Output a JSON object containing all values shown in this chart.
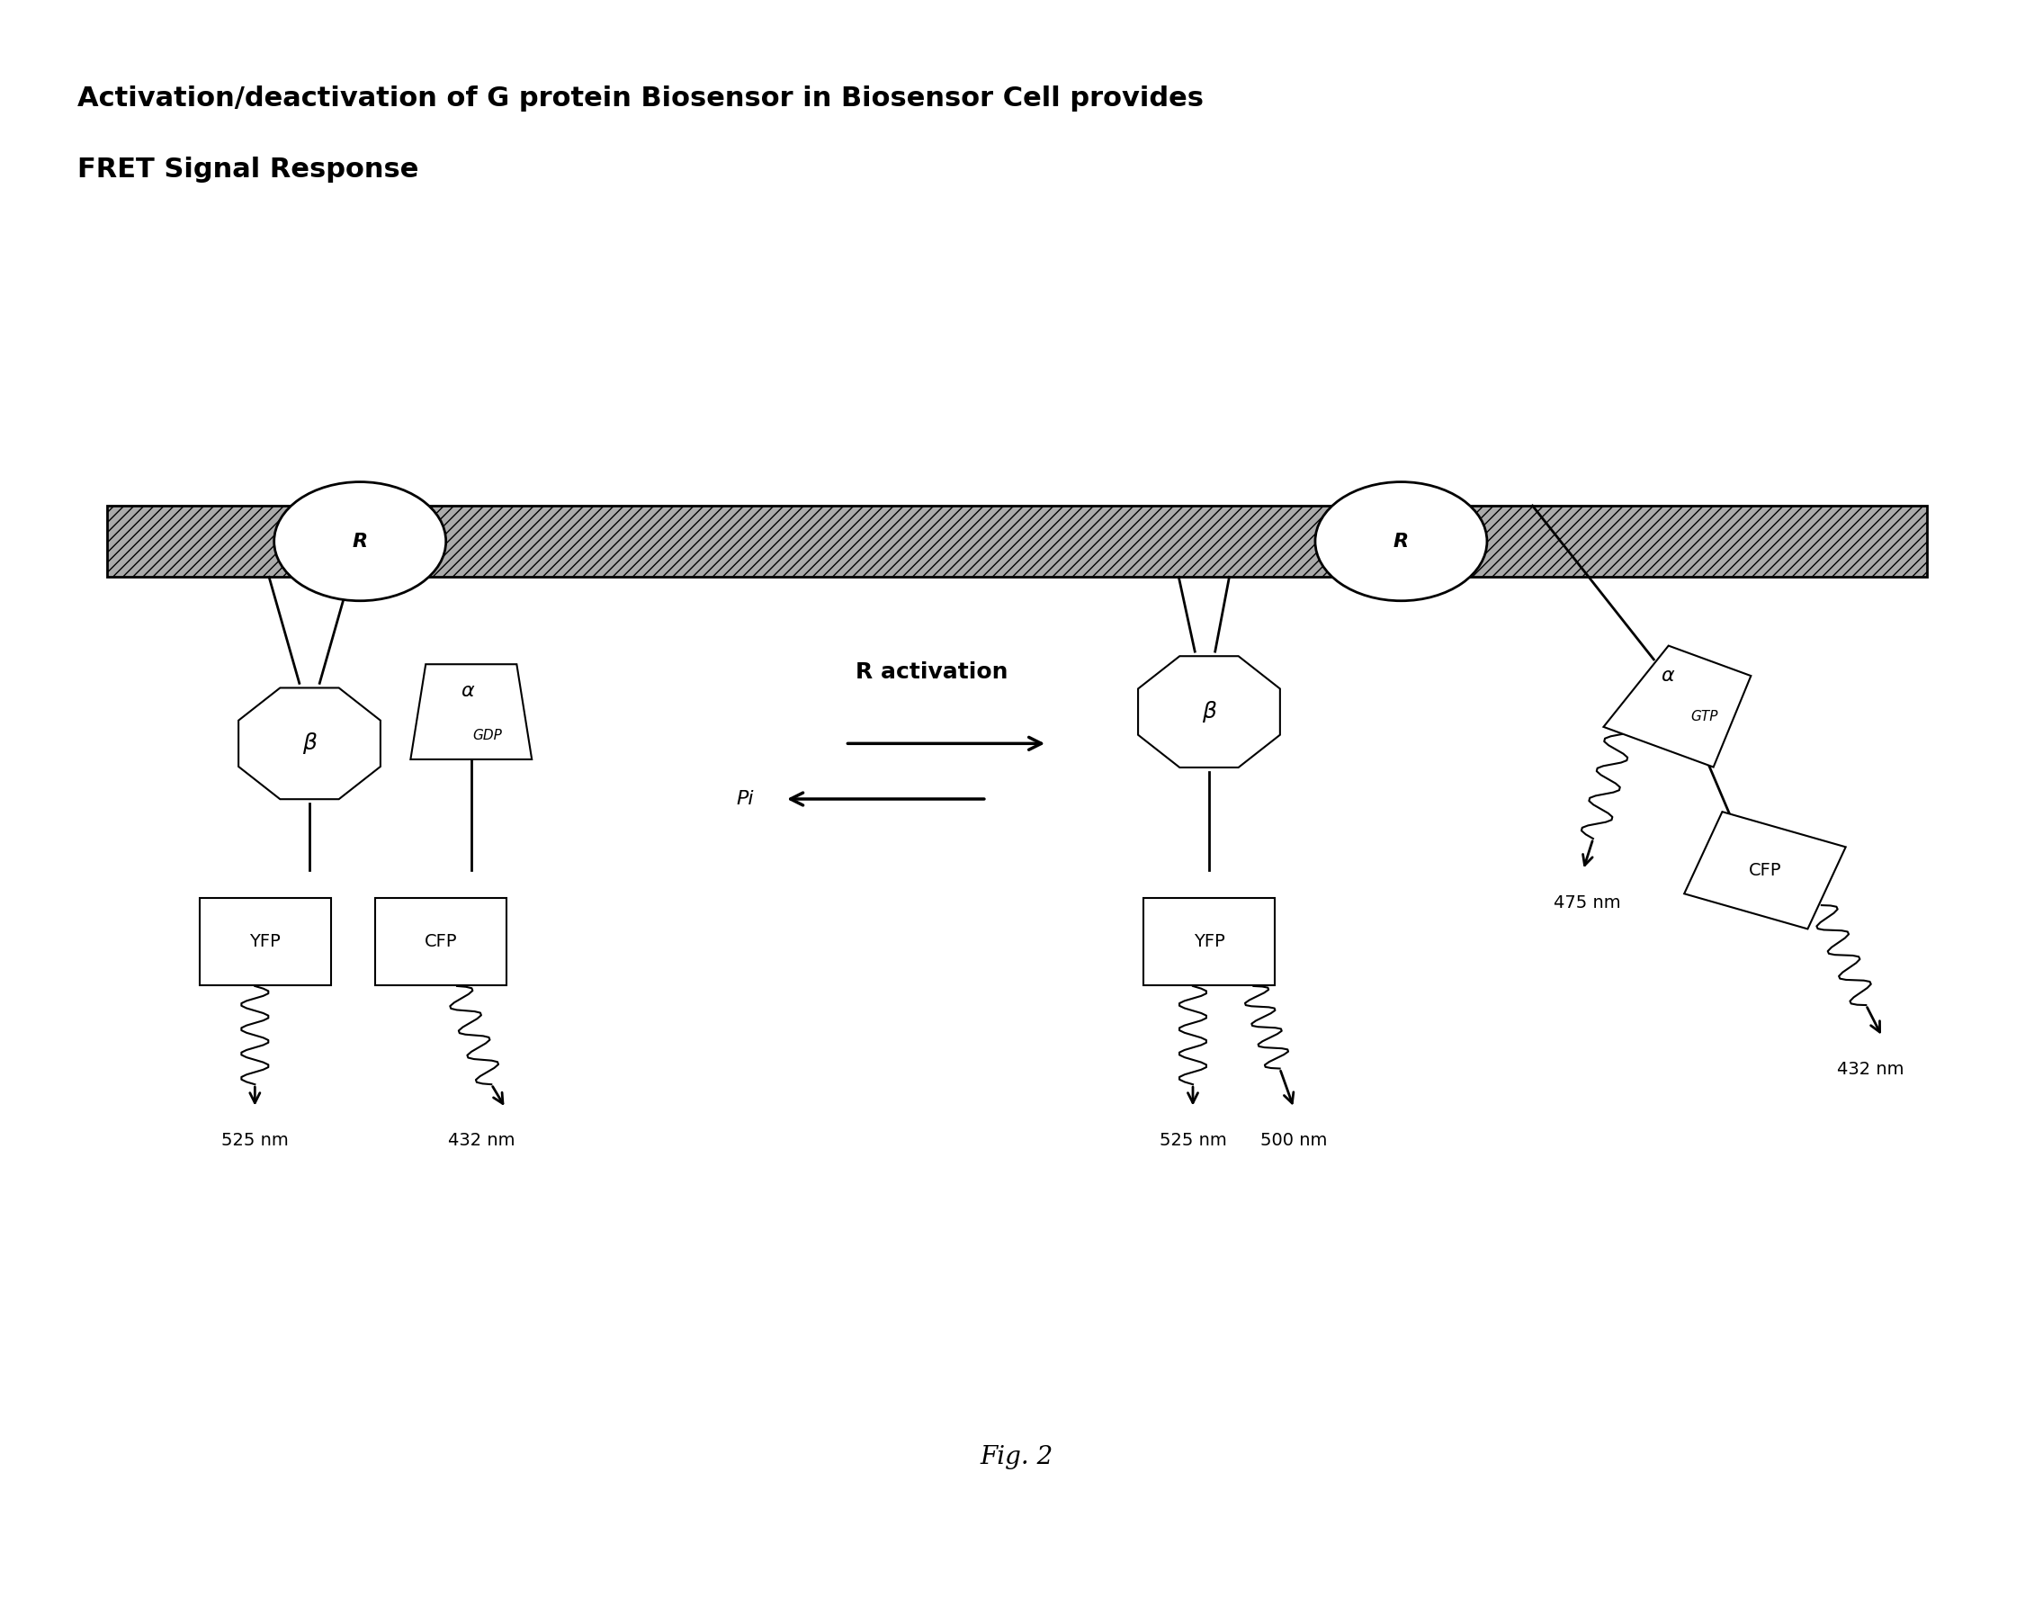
{
  "title_line1": "Activation/deactivation of G protein Biosensor in Biosensor Cell provides",
  "title_line2": "FRET Signal Response",
  "fig_label": "Fig. 2",
  "background_color": "#ffffff",
  "membrane_color": "#808080",
  "membrane_hatch": "////",
  "receptor_label": "R",
  "beta_label": "β",
  "alpha_label": "α",
  "gdp_label": "GDP",
  "gtp_label": "GTP",
  "yfp_label": "YFP",
  "cfp_label": "CFP",
  "r_activation_label": "R activation",
  "pi_label": "Pi",
  "wavelengths_left": [
    "525 nm",
    "432 nm"
  ],
  "wavelengths_middle": [
    "525 nm",
    "500 nm"
  ],
  "wavelengths_right": [
    "475 nm",
    "432 nm"
  ]
}
